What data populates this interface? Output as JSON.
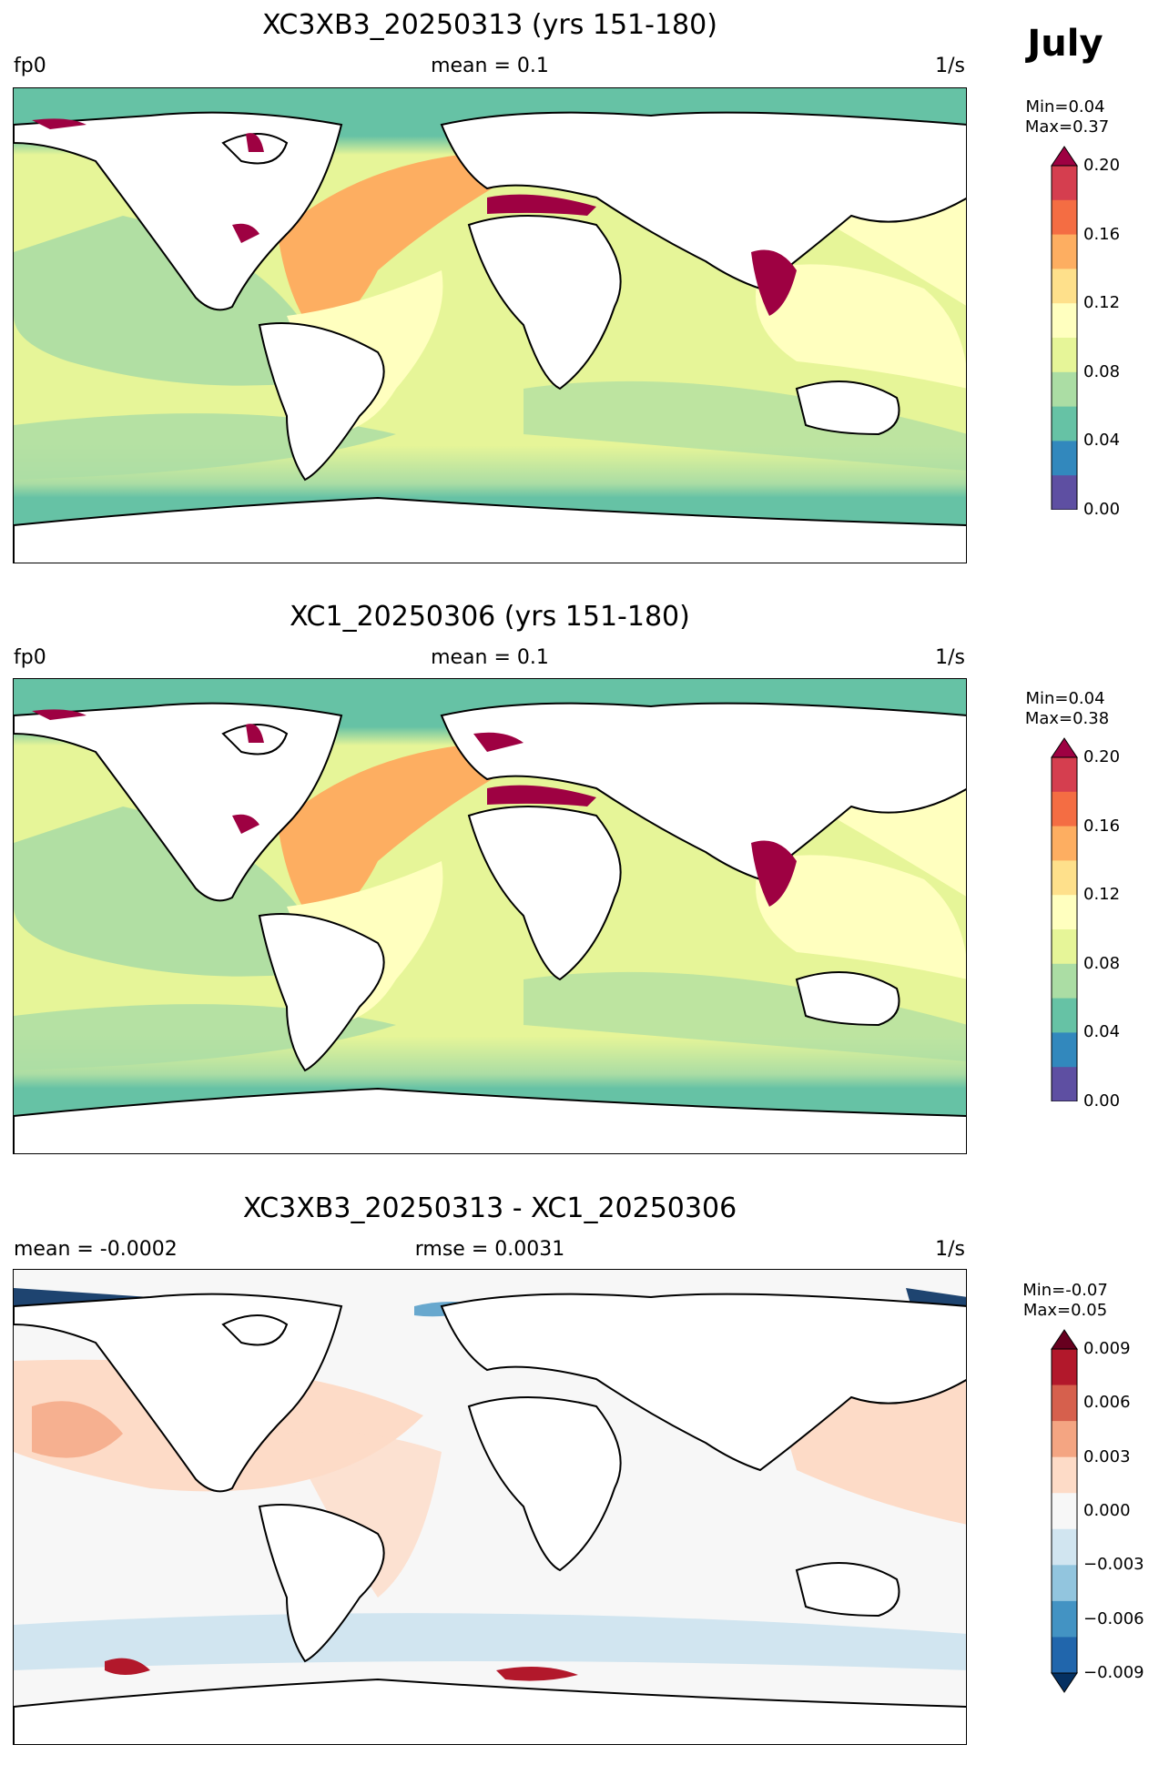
{
  "figure": {
    "month_label": "July"
  },
  "panels": [
    {
      "title": "XC3XB3_20250313 (yrs 151-180)",
      "left_label": "fp0",
      "center_label": "mean = 0.1",
      "right_label": "1/s",
      "min_label": "Min=0.04",
      "max_label": "Max=0.37",
      "colorbar": {
        "ticks": [
          "0.20",
          "0.16",
          "0.12",
          "0.08",
          "0.04",
          "0.00"
        ],
        "colors": [
          "#9e0142",
          "#d53e4f",
          "#f46d43",
          "#fdae61",
          "#fee08b",
          "#ffffbf",
          "#e6f598",
          "#abdda4",
          "#66c2a5",
          "#3288bd",
          "#5e4fa2"
        ],
        "extend": "max"
      }
    },
    {
      "title": "XC1_20250306 (yrs 151-180)",
      "left_label": "fp0",
      "center_label": "mean = 0.1",
      "right_label": "1/s",
      "min_label": "Min=0.04",
      "max_label": "Max=0.38",
      "colorbar": {
        "ticks": [
          "0.20",
          "0.16",
          "0.12",
          "0.08",
          "0.04",
          "0.00"
        ],
        "colors": [
          "#9e0142",
          "#d53e4f",
          "#f46d43",
          "#fdae61",
          "#fee08b",
          "#ffffbf",
          "#e6f598",
          "#abdda4",
          "#66c2a5",
          "#3288bd",
          "#5e4fa2"
        ],
        "extend": "max"
      }
    },
    {
      "title": "XC3XB3_20250313 - XC1_20250306",
      "left_label": "mean = -0.0002",
      "center_label": "rmse = 0.0031",
      "right_label": "1/s",
      "min_label": "Min=-0.07",
      "max_label": "Max=0.05",
      "colorbar": {
        "ticks": [
          "0.009",
          "0.006",
          "0.003",
          "0.000",
          "−0.003",
          "−0.006",
          "−0.009"
        ],
        "colors": [
          "#67001f",
          "#b2182b",
          "#d6604d",
          "#f4a582",
          "#fddbc7",
          "#f7f7f7",
          "#d1e5f0",
          "#92c5de",
          "#4393c3",
          "#2166ac",
          "#053061"
        ],
        "extend": "both"
      }
    }
  ],
  "map_colors": {
    "land": "#ffffff",
    "coast": "#000000"
  }
}
